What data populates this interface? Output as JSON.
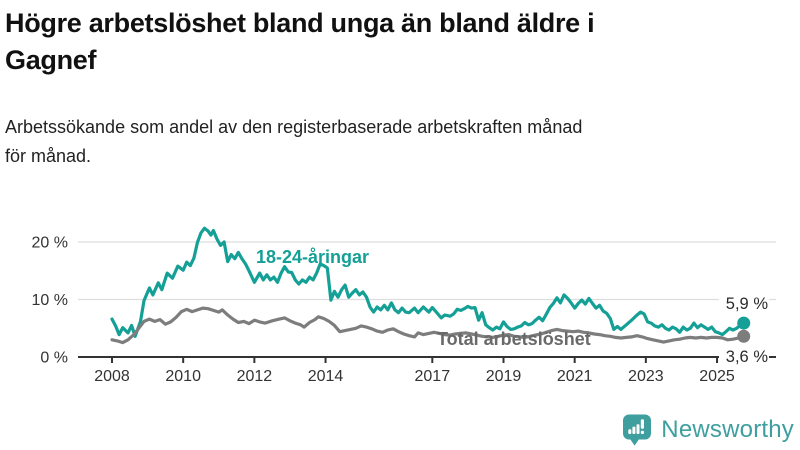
{
  "header": {
    "title_lines": [
      "Högre arbetslöshet bland unga än bland äldre i",
      "Gagnef"
    ],
    "subtitle_lines": [
      "Arbetssökande som andel av den registerbaserade arbetskraften månad",
      "för månad."
    ]
  },
  "chart_data": {
    "type": "line",
    "title": "Högre arbetslöshet bland unga än bland äldre i Gagnef",
    "subtitle": "Arbetssökande som andel av den registerbaserade arbetskraften månad för månad.",
    "unit": "%",
    "grid": "horizontal",
    "legend_position": "inline-labels",
    "x_range": [
      2008,
      2025.9
    ],
    "ylim": [
      0,
      23
    ],
    "x_ticks": [
      2008,
      2010,
      2012,
      2014,
      2017,
      2019,
      2021,
      2023,
      2025
    ],
    "y_ticks": [
      {
        "value": 0,
        "label": "0 %"
      },
      {
        "value": 10,
        "label": "10 %"
      },
      {
        "value": 20,
        "label": "20 %"
      }
    ],
    "colors": {
      "youth": "#14a096",
      "total": "#7d7d7d",
      "total_label": "#696969",
      "grid": "#dddddd",
      "axis": "#333333"
    },
    "series": [
      {
        "name": "18-24-åringar",
        "color": "#14a096",
        "end_label": "5,9 %",
        "end_value": 5.9,
        "points": [
          [
            2008.0,
            6.6
          ],
          [
            2008.1,
            5.4
          ],
          [
            2008.2,
            3.9
          ],
          [
            2008.3,
            5.1
          ],
          [
            2008.45,
            4.2
          ],
          [
            2008.55,
            5.5
          ],
          [
            2008.65,
            3.6
          ],
          [
            2008.8,
            6.2
          ],
          [
            2008.9,
            9.8
          ],
          [
            2009.05,
            12.0
          ],
          [
            2009.15,
            10.8
          ],
          [
            2009.3,
            12.9
          ],
          [
            2009.4,
            11.7
          ],
          [
            2009.55,
            14.6
          ],
          [
            2009.7,
            13.7
          ],
          [
            2009.85,
            15.8
          ],
          [
            2010.0,
            15.1
          ],
          [
            2010.1,
            16.5
          ],
          [
            2010.2,
            15.9
          ],
          [
            2010.3,
            17.2
          ],
          [
            2010.4,
            19.9
          ],
          [
            2010.5,
            21.6
          ],
          [
            2010.6,
            22.4
          ],
          [
            2010.7,
            21.9
          ],
          [
            2010.78,
            21.2
          ],
          [
            2010.85,
            22.0
          ],
          [
            2010.95,
            20.5
          ],
          [
            2011.05,
            19.4
          ],
          [
            2011.15,
            20.0
          ],
          [
            2011.25,
            16.6
          ],
          [
            2011.35,
            17.8
          ],
          [
            2011.45,
            17.1
          ],
          [
            2011.55,
            18.2
          ],
          [
            2011.65,
            17.1
          ],
          [
            2011.75,
            16.2
          ],
          [
            2011.85,
            15.0
          ],
          [
            2012.0,
            13.0
          ],
          [
            2012.15,
            14.6
          ],
          [
            2012.25,
            13.4
          ],
          [
            2012.35,
            14.3
          ],
          [
            2012.45,
            13.4
          ],
          [
            2012.55,
            13.9
          ],
          [
            2012.65,
            13.0
          ],
          [
            2012.75,
            14.6
          ],
          [
            2012.85,
            15.7
          ],
          [
            2012.95,
            14.8
          ],
          [
            2013.05,
            14.7
          ],
          [
            2013.15,
            13.4
          ],
          [
            2013.25,
            12.7
          ],
          [
            2013.35,
            13.4
          ],
          [
            2013.45,
            13.0
          ],
          [
            2013.55,
            13.9
          ],
          [
            2013.65,
            13.4
          ],
          [
            2013.75,
            14.6
          ],
          [
            2013.85,
            16.2
          ],
          [
            2013.95,
            15.9
          ],
          [
            2014.05,
            15.5
          ],
          [
            2014.15,
            9.9
          ],
          [
            2014.25,
            11.4
          ],
          [
            2014.35,
            10.4
          ],
          [
            2014.45,
            11.7
          ],
          [
            2014.55,
            12.5
          ],
          [
            2014.65,
            10.4
          ],
          [
            2014.75,
            11.1
          ],
          [
            2014.85,
            11.7
          ],
          [
            2014.95,
            10.8
          ],
          [
            2015.05,
            11.3
          ],
          [
            2015.15,
            10.4
          ],
          [
            2015.25,
            8.7
          ],
          [
            2015.35,
            7.8
          ],
          [
            2015.45,
            8.7
          ],
          [
            2015.55,
            8.2
          ],
          [
            2015.65,
            9.0
          ],
          [
            2015.75,
            8.2
          ],
          [
            2015.85,
            9.4
          ],
          [
            2015.95,
            8.2
          ],
          [
            2016.05,
            7.7
          ],
          [
            2016.15,
            8.5
          ],
          [
            2016.25,
            7.8
          ],
          [
            2016.35,
            7.7
          ],
          [
            2016.5,
            8.5
          ],
          [
            2016.6,
            7.7
          ],
          [
            2016.75,
            8.7
          ],
          [
            2016.9,
            7.8
          ],
          [
            2017.0,
            8.6
          ],
          [
            2017.1,
            7.9
          ],
          [
            2017.25,
            6.8
          ],
          [
            2017.35,
            7.3
          ],
          [
            2017.5,
            7.1
          ],
          [
            2017.6,
            7.5
          ],
          [
            2017.7,
            8.3
          ],
          [
            2017.8,
            8.1
          ],
          [
            2017.9,
            8.4
          ],
          [
            2018.0,
            8.8
          ],
          [
            2018.1,
            8.5
          ],
          [
            2018.2,
            8.6
          ],
          [
            2018.3,
            6.4
          ],
          [
            2018.4,
            7.7
          ],
          [
            2018.5,
            5.6
          ],
          [
            2018.6,
            5.1
          ],
          [
            2018.7,
            4.7
          ],
          [
            2018.8,
            5.2
          ],
          [
            2018.9,
            4.9
          ],
          [
            2019.0,
            6.1
          ],
          [
            2019.1,
            5.3
          ],
          [
            2019.2,
            4.8
          ],
          [
            2019.3,
            4.9
          ],
          [
            2019.4,
            5.2
          ],
          [
            2019.5,
            5.4
          ],
          [
            2019.6,
            6.0
          ],
          [
            2019.7,
            5.6
          ],
          [
            2019.8,
            5.8
          ],
          [
            2019.9,
            6.4
          ],
          [
            2020.0,
            6.9
          ],
          [
            2020.1,
            6.3
          ],
          [
            2020.2,
            7.4
          ],
          [
            2020.3,
            8.6
          ],
          [
            2020.4,
            9.3
          ],
          [
            2020.5,
            10.3
          ],
          [
            2020.6,
            9.4
          ],
          [
            2020.7,
            10.8
          ],
          [
            2020.8,
            10.2
          ],
          [
            2020.9,
            9.4
          ],
          [
            2021.0,
            8.5
          ],
          [
            2021.1,
            9.3
          ],
          [
            2021.2,
            9.9
          ],
          [
            2021.3,
            9.2
          ],
          [
            2021.4,
            10.2
          ],
          [
            2021.5,
            9.3
          ],
          [
            2021.6,
            8.5
          ],
          [
            2021.7,
            9.0
          ],
          [
            2021.8,
            8.0
          ],
          [
            2021.9,
            7.6
          ],
          [
            2022.0,
            6.7
          ],
          [
            2022.1,
            4.8
          ],
          [
            2022.2,
            5.3
          ],
          [
            2022.3,
            4.8
          ],
          [
            2022.45,
            5.6
          ],
          [
            2022.6,
            6.4
          ],
          [
            2022.75,
            7.3
          ],
          [
            2022.85,
            7.8
          ],
          [
            2022.95,
            7.5
          ],
          [
            2023.05,
            6.1
          ],
          [
            2023.15,
            5.9
          ],
          [
            2023.25,
            5.4
          ],
          [
            2023.35,
            5.2
          ],
          [
            2023.45,
            5.6
          ],
          [
            2023.55,
            5.0
          ],
          [
            2023.65,
            4.7
          ],
          [
            2023.75,
            5.2
          ],
          [
            2023.85,
            4.9
          ],
          [
            2023.95,
            4.3
          ],
          [
            2024.05,
            5.2
          ],
          [
            2024.15,
            4.7
          ],
          [
            2024.25,
            5.0
          ],
          [
            2024.35,
            5.9
          ],
          [
            2024.45,
            5.1
          ],
          [
            2024.55,
            5.6
          ],
          [
            2024.65,
            5.2
          ],
          [
            2024.75,
            4.8
          ],
          [
            2024.85,
            5.2
          ],
          [
            2024.95,
            4.4
          ],
          [
            2025.05,
            4.2
          ],
          [
            2025.15,
            3.9
          ],
          [
            2025.25,
            4.4
          ],
          [
            2025.35,
            5.0
          ],
          [
            2025.45,
            4.7
          ],
          [
            2025.55,
            5.0
          ],
          [
            2025.65,
            5.5
          ],
          [
            2025.75,
            5.9
          ]
        ]
      },
      {
        "name": "Total arbetslöshet",
        "color": "#7d7d7d",
        "end_label": "3,6 %",
        "end_value": 3.6,
        "points": [
          [
            2008.0,
            3.0
          ],
          [
            2008.15,
            2.8
          ],
          [
            2008.3,
            2.5
          ],
          [
            2008.45,
            3.0
          ],
          [
            2008.6,
            3.8
          ],
          [
            2008.75,
            5.0
          ],
          [
            2008.9,
            6.2
          ],
          [
            2009.05,
            6.6
          ],
          [
            2009.2,
            6.2
          ],
          [
            2009.35,
            6.5
          ],
          [
            2009.5,
            5.7
          ],
          [
            2009.65,
            6.1
          ],
          [
            2009.8,
            6.9
          ],
          [
            2009.95,
            7.9
          ],
          [
            2010.1,
            8.3
          ],
          [
            2010.25,
            7.9
          ],
          [
            2010.4,
            8.2
          ],
          [
            2010.55,
            8.5
          ],
          [
            2010.7,
            8.4
          ],
          [
            2010.85,
            8.1
          ],
          [
            2011.0,
            7.8
          ],
          [
            2011.1,
            8.2
          ],
          [
            2011.25,
            7.3
          ],
          [
            2011.4,
            6.6
          ],
          [
            2011.55,
            6.0
          ],
          [
            2011.7,
            6.2
          ],
          [
            2011.85,
            5.8
          ],
          [
            2012.0,
            6.4
          ],
          [
            2012.15,
            6.1
          ],
          [
            2012.3,
            5.9
          ],
          [
            2012.5,
            6.3
          ],
          [
            2012.7,
            6.6
          ],
          [
            2012.85,
            6.8
          ],
          [
            2013.0,
            6.3
          ],
          [
            2013.15,
            5.9
          ],
          [
            2013.3,
            5.6
          ],
          [
            2013.4,
            5.2
          ],
          [
            2013.55,
            6.0
          ],
          [
            2013.7,
            6.5
          ],
          [
            2013.8,
            7.0
          ],
          [
            2013.95,
            6.7
          ],
          [
            2014.1,
            6.2
          ],
          [
            2014.25,
            5.5
          ],
          [
            2014.4,
            4.4
          ],
          [
            2014.55,
            4.6
          ],
          [
            2014.7,
            4.8
          ],
          [
            2014.85,
            5.0
          ],
          [
            2015.0,
            5.4
          ],
          [
            2015.15,
            5.2
          ],
          [
            2015.3,
            4.9
          ],
          [
            2015.45,
            4.5
          ],
          [
            2015.6,
            4.3
          ],
          [
            2015.75,
            4.7
          ],
          [
            2015.9,
            4.9
          ],
          [
            2016.05,
            4.4
          ],
          [
            2016.2,
            4.0
          ],
          [
            2016.35,
            3.7
          ],
          [
            2016.5,
            3.5
          ],
          [
            2016.6,
            4.2
          ],
          [
            2016.75,
            3.9
          ],
          [
            2016.9,
            4.1
          ],
          [
            2017.05,
            4.3
          ],
          [
            2017.2,
            4.1
          ],
          [
            2017.35,
            3.9
          ],
          [
            2017.5,
            3.8
          ],
          [
            2017.65,
            4.0
          ],
          [
            2017.8,
            4.1
          ],
          [
            2017.95,
            4.2
          ],
          [
            2018.1,
            4.0
          ],
          [
            2018.25,
            3.8
          ],
          [
            2018.4,
            3.6
          ],
          [
            2018.55,
            3.5
          ],
          [
            2018.7,
            3.4
          ],
          [
            2018.85,
            3.6
          ],
          [
            2019.0,
            3.8
          ],
          [
            2019.15,
            3.9
          ],
          [
            2019.3,
            3.6
          ],
          [
            2019.45,
            3.5
          ],
          [
            2019.6,
            3.4
          ],
          [
            2019.75,
            3.6
          ],
          [
            2019.9,
            3.8
          ],
          [
            2020.05,
            4.0
          ],
          [
            2020.2,
            4.3
          ],
          [
            2020.35,
            4.6
          ],
          [
            2020.5,
            4.8
          ],
          [
            2020.65,
            4.6
          ],
          [
            2020.8,
            4.5
          ],
          [
            2020.95,
            4.4
          ],
          [
            2021.1,
            4.5
          ],
          [
            2021.25,
            4.3
          ],
          [
            2021.4,
            4.2
          ],
          [
            2021.55,
            4.0
          ],
          [
            2021.7,
            3.9
          ],
          [
            2021.85,
            3.7
          ],
          [
            2022.0,
            3.6
          ],
          [
            2022.15,
            3.4
          ],
          [
            2022.3,
            3.3
          ],
          [
            2022.45,
            3.4
          ],
          [
            2022.6,
            3.5
          ],
          [
            2022.75,
            3.7
          ],
          [
            2022.9,
            3.5
          ],
          [
            2023.05,
            3.2
          ],
          [
            2023.2,
            3.0
          ],
          [
            2023.35,
            2.8
          ],
          [
            2023.5,
            2.6
          ],
          [
            2023.65,
            2.8
          ],
          [
            2023.8,
            3.0
          ],
          [
            2023.95,
            3.1
          ],
          [
            2024.1,
            3.3
          ],
          [
            2024.25,
            3.4
          ],
          [
            2024.4,
            3.3
          ],
          [
            2024.55,
            3.4
          ],
          [
            2024.7,
            3.3
          ],
          [
            2024.85,
            3.4
          ],
          [
            2025.0,
            3.4
          ],
          [
            2025.15,
            3.3
          ],
          [
            2025.3,
            3.0
          ],
          [
            2025.45,
            3.1
          ],
          [
            2025.6,
            3.3
          ],
          [
            2025.75,
            3.6
          ]
        ]
      }
    ]
  },
  "logo": {
    "text": "Newsworthy",
    "color": "#3f9e9e",
    "icon": "newsworthy-speech-bubble-bar-chart-icon"
  }
}
